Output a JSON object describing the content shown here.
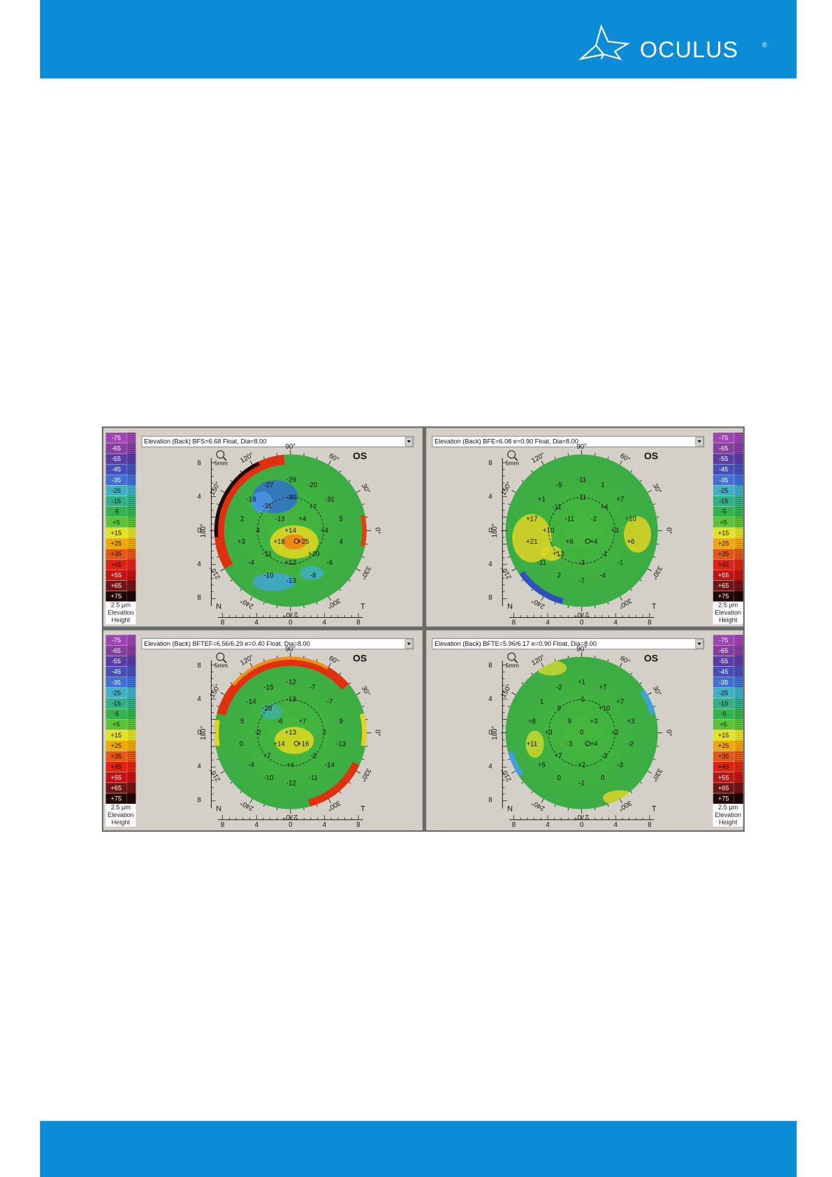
{
  "header": {
    "logo": "OCULUS",
    "mark": "®"
  },
  "legend": {
    "steps": [
      "-75",
      "-65",
      "-55",
      "-45",
      "-35",
      "-25",
      "-15",
      "-5",
      "+5",
      "+15",
      "+25",
      "+35",
      "+45",
      "+55",
      "+65",
      "+75"
    ],
    "colors": [
      "#a044b4",
      "#84409c",
      "#5a3ca4",
      "#4450b8",
      "#4070d4",
      "#40b0c4",
      "#30b084",
      "#34b450",
      "#5cc434",
      "#e4e024",
      "#f0a808",
      "#e45814",
      "#e02414",
      "#c01414",
      "#701414",
      "#200404"
    ],
    "unit": "2.5 µm",
    "line1": "Elevation",
    "line2": "Height"
  },
  "axis": {
    "ticks": [
      "8",
      "4",
      "0",
      "4",
      "8"
    ],
    "angles": [
      "90°",
      "60°",
      "30°",
      "0°",
      "330°",
      "300°",
      "270°",
      "240°",
      "210°",
      "180°",
      "150°",
      "120°"
    ],
    "nasal": "N",
    "temporal": "T",
    "zoom": "5mm"
  },
  "panels": [
    {
      "title": "Elevation (Back)  BFS=6.68 Float, Dia=8.00",
      "eye": "OS",
      "values": [
        "-27",
        "-29",
        "-20",
        "-18",
        "-30",
        "-31",
        "-31",
        "2",
        "-13",
        "+4",
        "+7",
        "5",
        "+3",
        "4",
        "+14",
        "+4",
        "4",
        "+18",
        "+25",
        "-11",
        "+10",
        "-4",
        "+12",
        "-6",
        "-8",
        "-10",
        "-13"
      ]
    },
    {
      "title": "Elevation (Back)  BFE=6.08 e=0.90 Float, Dia=8.00",
      "eye": "OS",
      "values": [
        "-9",
        "-11",
        "1",
        "+1",
        "-11",
        "+7",
        "-11",
        "+4",
        "+17",
        "-11",
        "-2",
        "+10",
        "+10",
        "+3",
        "+21",
        "+6",
        "+4",
        "+6",
        "+13",
        "-1",
        "-11",
        "-3",
        "-1",
        "2",
        "-7",
        "-4"
      ]
    },
    {
      "title": "Elevation (Back)  BFTEF=6.56/6.29 e=0.40 Float, Dia=8.00",
      "eye": "OS",
      "values": [
        "-15",
        "-12",
        "-7",
        "-14",
        "-13",
        "-7",
        "-20",
        "5",
        "-6",
        "+7",
        "9",
        "-2",
        "+13",
        "2",
        "0",
        "+14",
        "+16",
        "-13",
        "+7",
        "-2",
        "-4",
        "+4",
        "-14",
        "-10",
        "-12",
        "-11"
      ]
    },
    {
      "title": "Elevation (Back)  BFTE=5.96/6.17 e=0.90 Float, Dia=8.00",
      "eye": "OS",
      "values": [
        "-2",
        "+1",
        "+7",
        "1",
        "-1",
        "+7",
        "9",
        "+10",
        "+8",
        "9",
        "+3",
        "+3",
        "+3",
        "0",
        "+2",
        "+11",
        "-3",
        "+4",
        "-2",
        "+7",
        "-3",
        "+5",
        "+2",
        "-3",
        "0",
        "-1",
        "0"
      ]
    }
  ]
}
